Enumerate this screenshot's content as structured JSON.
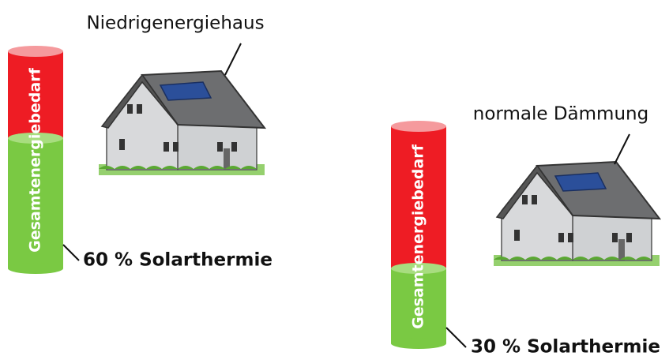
{
  "scenarios": [
    {
      "house_label": "Niedrigenergiehaus",
      "cylinder_label": "Gesamtenergiebedarf",
      "solar_label": "60 % Solarthermie"
    },
    {
      "house_label": "normale Dämmung",
      "cylinder_label": "Gesamtenergiebedarf",
      "solar_label": "30 % Solarthermie"
    }
  ]
}
